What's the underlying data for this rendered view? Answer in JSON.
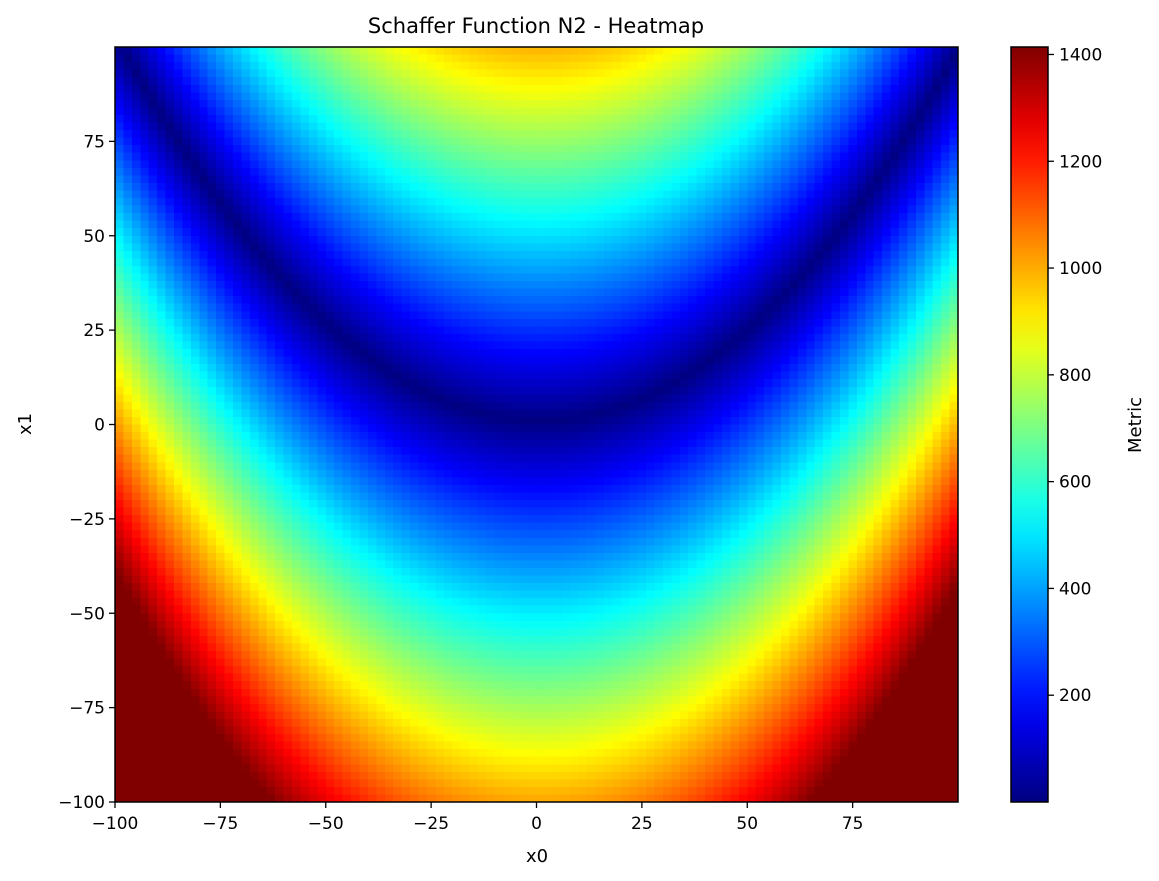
{
  "chart_data": {
    "type": "heatmap",
    "title": "Schaffer Function N2 - Heatmap",
    "xlabel": "x0",
    "ylabel": "x1",
    "colorbar_label": "Metric",
    "colormap": "jet",
    "function": "(x1 - x0^2/100)^2 style valley with minimum near (0, 0)",
    "xlim": [
      -100,
      98
    ],
    "ylim": [
      -100,
      98
    ],
    "grid_step": 2,
    "x_ticks": [
      -100,
      -75,
      -50,
      -25,
      0,
      25,
      50,
      75
    ],
    "y_ticks": [
      -100,
      -75,
      -50,
      -25,
      0,
      25,
      50,
      75
    ],
    "x_tick_labels": [
      "−100",
      "−75",
      "−50",
      "−25",
      "0",
      "25",
      "50",
      "75"
    ],
    "y_tick_labels": [
      "−100",
      "−75",
      "−50",
      "−25",
      "0",
      "25",
      "50",
      "75"
    ],
    "colorbar_range": [
      0,
      1414
    ],
    "colorbar_ticks": [
      200,
      400,
      600,
      800,
      1000,
      1200,
      1400
    ],
    "colorbar_tick_labels": [
      "200",
      "400",
      "600",
      "800",
      "1000",
      "1200",
      "1400"
    ],
    "valley_curve": "x1 = x0^2 / 100",
    "notable_values": [
      {
        "x0": 0,
        "x1": 0,
        "metric": 0
      },
      {
        "x0": -100,
        "x1": -100,
        "metric": 1414
      },
      {
        "x0": 98,
        "x1": -100,
        "metric": 1400
      },
      {
        "x0": 0,
        "x1": 98,
        "metric": 980
      },
      {
        "x0": 0,
        "x1": -100,
        "metric": 900
      }
    ]
  }
}
